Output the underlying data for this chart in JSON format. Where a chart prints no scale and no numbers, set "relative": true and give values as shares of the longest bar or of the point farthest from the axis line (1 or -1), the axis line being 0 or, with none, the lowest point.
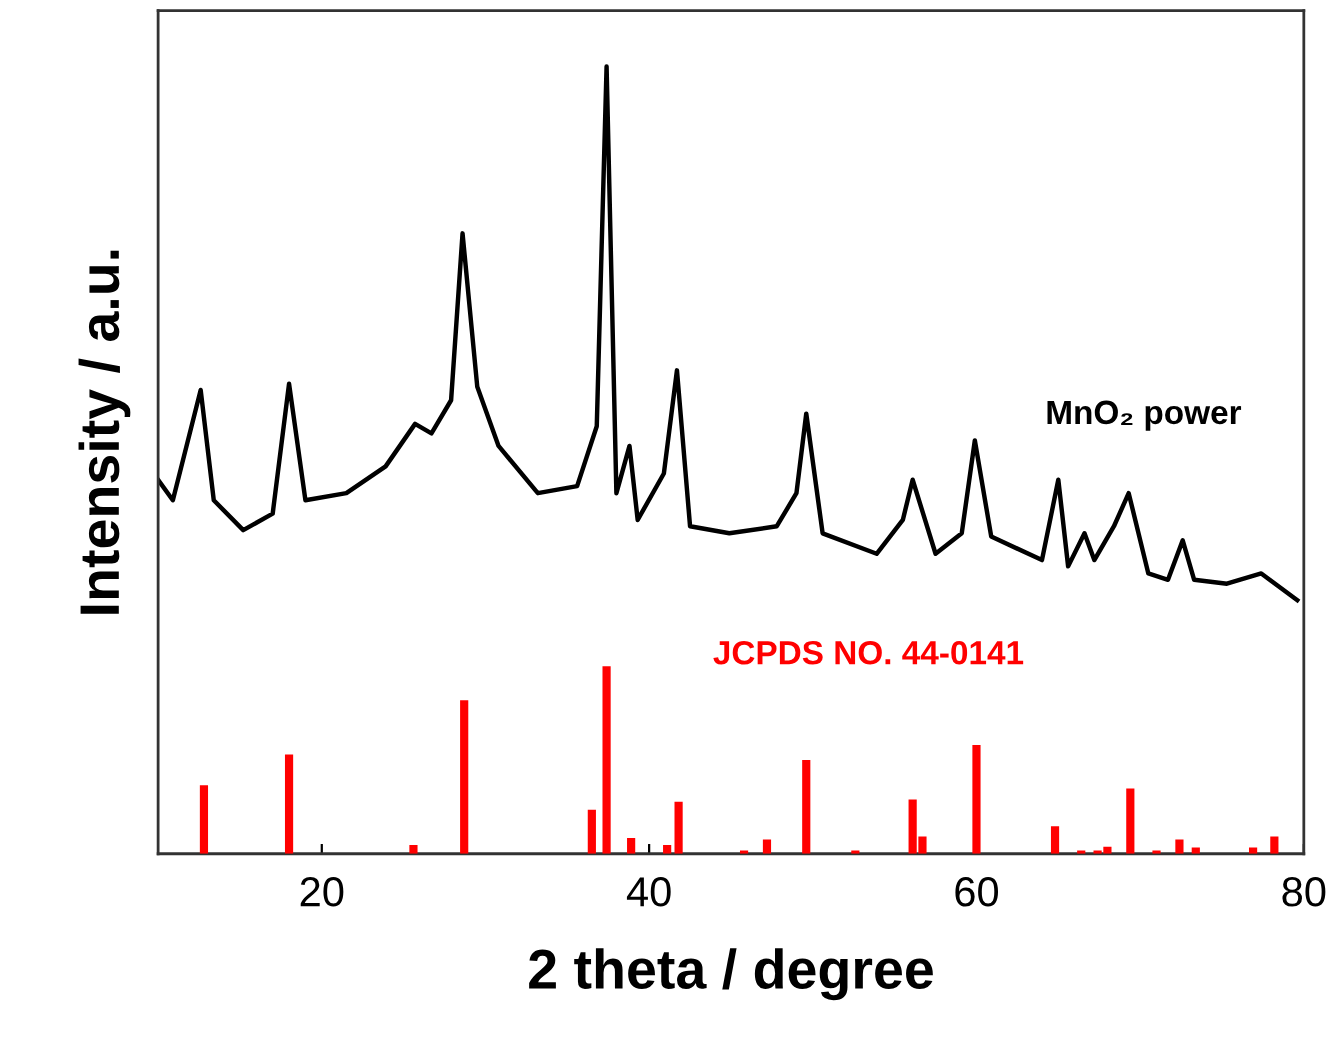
{
  "chart_data": {
    "type": "line",
    "relative": true,
    "xlabel": "2 theta / degree",
    "ylabel": "Intensity / a.u.",
    "xlim": [
      10,
      80
    ],
    "xticks": [
      20,
      40,
      60,
      80
    ],
    "grid": false,
    "legend": false,
    "marker": "none",
    "line_style": "solid",
    "series": [
      {
        "name": "MnO₂ power",
        "color": "#000000",
        "x": [
          10,
          10.9,
          12.6,
          13.4,
          15.2,
          17.0,
          18.0,
          19.0,
          21.5,
          23.9,
          25.7,
          26.7,
          27.9,
          28.6,
          29.5,
          30.8,
          33.2,
          35.6,
          36.8,
          37.4,
          38.0,
          38.8,
          39.3,
          40.9,
          41.7,
          42.5,
          44.9,
          47.8,
          49.0,
          49.6,
          50.6,
          53.9,
          55.5,
          56.1,
          57.5,
          59.1,
          59.9,
          60.9,
          64.0,
          65.0,
          65.6,
          66.6,
          67.2,
          68.4,
          69.3,
          70.5,
          71.7,
          72.6,
          73.3,
          75.3,
          77.4,
          79.6
        ],
        "values": [
          0.475,
          0.449,
          0.589,
          0.449,
          0.411,
          0.432,
          0.597,
          0.449,
          0.458,
          0.492,
          0.546,
          0.534,
          0.576,
          0.788,
          0.593,
          0.518,
          0.458,
          0.467,
          0.543,
          1.0,
          0.458,
          0.518,
          0.424,
          0.483,
          0.614,
          0.416,
          0.407,
          0.416,
          0.458,
          0.559,
          0.407,
          0.381,
          0.424,
          0.475,
          0.381,
          0.407,
          0.525,
          0.403,
          0.373,
          0.475,
          0.365,
          0.407,
          0.373,
          0.416,
          0.458,
          0.356,
          0.348,
          0.398,
          0.348,
          0.343,
          0.356,
          0.322
        ]
      },
      {
        "name": "JCPDS NO. 44-0141",
        "type": "bar",
        "color": "#ff0000",
        "x": [
          12.8,
          18.0,
          25.6,
          28.7,
          36.5,
          37.4,
          38.9,
          41.1,
          41.8,
          45.8,
          47.2,
          49.6,
          52.6,
          56.1,
          56.7,
          60.0,
          64.8,
          66.4,
          67.4,
          68.0,
          69.4,
          71.0,
          72.4,
          73.4,
          76.9,
          78.2
        ],
        "values": [
          0.087,
          0.126,
          0.011,
          0.195,
          0.056,
          0.238,
          0.02,
          0.011,
          0.066,
          0.004,
          0.018,
          0.119,
          0.004,
          0.069,
          0.022,
          0.138,
          0.035,
          0.004,
          0.004,
          0.009,
          0.083,
          0.004,
          0.018,
          0.008,
          0.008,
          0.022
        ]
      }
    ]
  }
}
